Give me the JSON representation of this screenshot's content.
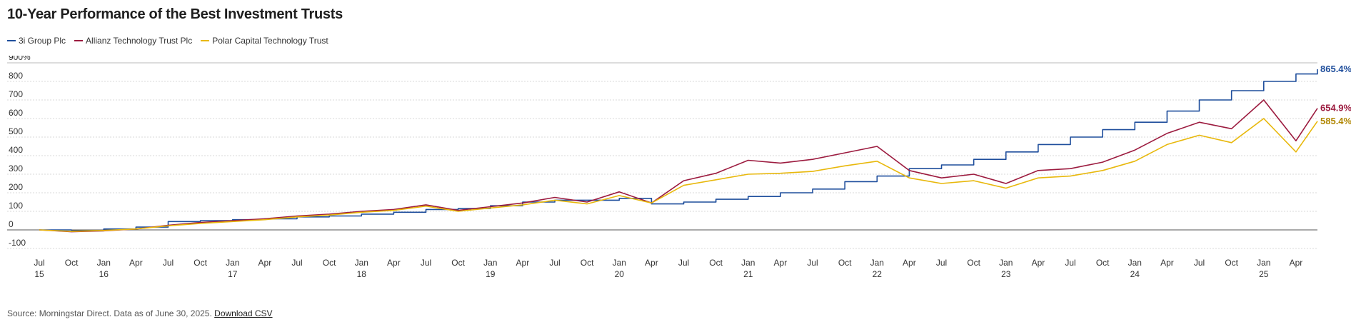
{
  "title": "10-Year Performance of the Best Investment Trusts",
  "footer": {
    "source_text": "Source: Morningstar Direct. Data as of June 30, 2025.",
    "download_label": "Download CSV"
  },
  "chart_data": {
    "type": "line",
    "title": "10-Year Performance of the Best Investment Trusts",
    "xlabel": "",
    "ylabel": "",
    "y_unit": "%",
    "ylim": [
      -100,
      900
    ],
    "y_ticks": [
      {
        "value": 900,
        "label": "900%"
      },
      {
        "value": 800,
        "label": "800"
      },
      {
        "value": 700,
        "label": "700"
      },
      {
        "value": 600,
        "label": "600"
      },
      {
        "value": 500,
        "label": "500"
      },
      {
        "value": 400,
        "label": "400"
      },
      {
        "value": 300,
        "label": "300"
      },
      {
        "value": 200,
        "label": "200"
      },
      {
        "value": 100,
        "label": "100"
      },
      {
        "value": 0,
        "label": "0"
      },
      {
        "value": -100,
        "label": "-100"
      }
    ],
    "xlim": [
      "2015-07",
      "2025-06"
    ],
    "x_ticks": [
      {
        "date": "2015-07",
        "label": "Jul",
        "year": "15"
      },
      {
        "date": "2015-10",
        "label": "Oct",
        "year": ""
      },
      {
        "date": "2016-01",
        "label": "Jan",
        "year": "16"
      },
      {
        "date": "2016-04",
        "label": "Apr",
        "year": ""
      },
      {
        "date": "2016-07",
        "label": "Jul",
        "year": ""
      },
      {
        "date": "2016-10",
        "label": "Oct",
        "year": ""
      },
      {
        "date": "2017-01",
        "label": "Jan",
        "year": "17"
      },
      {
        "date": "2017-04",
        "label": "Apr",
        "year": ""
      },
      {
        "date": "2017-07",
        "label": "Jul",
        "year": ""
      },
      {
        "date": "2017-10",
        "label": "Oct",
        "year": ""
      },
      {
        "date": "2018-01",
        "label": "Jan",
        "year": "18"
      },
      {
        "date": "2018-04",
        "label": "Apr",
        "year": ""
      },
      {
        "date": "2018-07",
        "label": "Jul",
        "year": ""
      },
      {
        "date": "2018-10",
        "label": "Oct",
        "year": ""
      },
      {
        "date": "2019-01",
        "label": "Jan",
        "year": "19"
      },
      {
        "date": "2019-04",
        "label": "Apr",
        "year": ""
      },
      {
        "date": "2019-07",
        "label": "Jul",
        "year": ""
      },
      {
        "date": "2019-10",
        "label": "Oct",
        "year": ""
      },
      {
        "date": "2020-01",
        "label": "Jan",
        "year": "20"
      },
      {
        "date": "2020-04",
        "label": "Apr",
        "year": ""
      },
      {
        "date": "2020-07",
        "label": "Jul",
        "year": ""
      },
      {
        "date": "2020-10",
        "label": "Oct",
        "year": ""
      },
      {
        "date": "2021-01",
        "label": "Jan",
        "year": "21"
      },
      {
        "date": "2021-04",
        "label": "Apr",
        "year": ""
      },
      {
        "date": "2021-07",
        "label": "Jul",
        "year": ""
      },
      {
        "date": "2021-10",
        "label": "Oct",
        "year": ""
      },
      {
        "date": "2022-01",
        "label": "Jan",
        "year": "22"
      },
      {
        "date": "2022-04",
        "label": "Apr",
        "year": ""
      },
      {
        "date": "2022-07",
        "label": "Jul",
        "year": ""
      },
      {
        "date": "2022-10",
        "label": "Oct",
        "year": ""
      },
      {
        "date": "2023-01",
        "label": "Jan",
        "year": "23"
      },
      {
        "date": "2023-04",
        "label": "Apr",
        "year": ""
      },
      {
        "date": "2023-07",
        "label": "Jul",
        "year": ""
      },
      {
        "date": "2023-10",
        "label": "Oct",
        "year": ""
      },
      {
        "date": "2024-01",
        "label": "Jan",
        "year": "24"
      },
      {
        "date": "2024-04",
        "label": "Apr",
        "year": ""
      },
      {
        "date": "2024-07",
        "label": "Jul",
        "year": ""
      },
      {
        "date": "2024-10",
        "label": "Oct",
        "year": ""
      },
      {
        "date": "2025-01",
        "label": "Jan",
        "year": "25"
      },
      {
        "date": "2025-04",
        "label": "Apr",
        "year": ""
      }
    ],
    "grid": true,
    "legend_position": "top-left",
    "series": [
      {
        "name": "3i Group Plc",
        "color": "#1f4e9c",
        "end_label": "865.4%",
        "x": [
          "2015-07",
          "2015-10",
          "2016-01",
          "2016-04",
          "2016-07",
          "2016-10",
          "2017-01",
          "2017-04",
          "2017-07",
          "2017-10",
          "2018-01",
          "2018-04",
          "2018-07",
          "2018-10",
          "2019-01",
          "2019-04",
          "2019-07",
          "2019-10",
          "2020-01",
          "2020-04",
          "2020-07",
          "2020-10",
          "2021-01",
          "2021-04",
          "2021-07",
          "2021-10",
          "2022-01",
          "2022-04",
          "2022-07",
          "2022-10",
          "2023-01",
          "2023-04",
          "2023-07",
          "2023-10",
          "2024-01",
          "2024-04",
          "2024-07",
          "2024-10",
          "2025-01",
          "2025-04",
          "2025-06"
        ],
        "y": [
          0,
          -5,
          5,
          15,
          45,
          50,
          55,
          60,
          70,
          75,
          85,
          95,
          110,
          115,
          130,
          150,
          160,
          160,
          170,
          140,
          150,
          165,
          180,
          200,
          220,
          260,
          290,
          330,
          350,
          380,
          420,
          460,
          500,
          540,
          580,
          640,
          700,
          750,
          800,
          840,
          865.4
        ]
      },
      {
        "name": "Allianz Technology Trust Plc",
        "color": "#9c1b3f",
        "end_label": "654.9%",
        "x": [
          "2015-07",
          "2015-10",
          "2016-01",
          "2016-04",
          "2016-07",
          "2016-10",
          "2017-01",
          "2017-04",
          "2017-07",
          "2017-10",
          "2018-01",
          "2018-04",
          "2018-07",
          "2018-10",
          "2019-01",
          "2019-04",
          "2019-07",
          "2019-10",
          "2020-01",
          "2020-04",
          "2020-07",
          "2020-10",
          "2021-01",
          "2021-04",
          "2021-07",
          "2021-10",
          "2022-01",
          "2022-04",
          "2022-07",
          "2022-10",
          "2023-01",
          "2023-04",
          "2023-07",
          "2023-10",
          "2024-01",
          "2024-04",
          "2024-07",
          "2024-10",
          "2025-01",
          "2025-04",
          "2025-06"
        ],
        "y": [
          0,
          -10,
          -5,
          5,
          25,
          40,
          50,
          60,
          75,
          85,
          100,
          110,
          135,
          105,
          125,
          145,
          175,
          150,
          205,
          145,
          265,
          305,
          375,
          360,
          380,
          415,
          450,
          320,
          280,
          300,
          250,
          320,
          330,
          365,
          430,
          520,
          580,
          545,
          700,
          480,
          654.9
        ]
      },
      {
        "name": "Polar Capital Technology Trust",
        "color": "#e8b80c",
        "end_label": "585.4%",
        "x": [
          "2015-07",
          "2015-10",
          "2016-01",
          "2016-04",
          "2016-07",
          "2016-10",
          "2017-01",
          "2017-04",
          "2017-07",
          "2017-10",
          "2018-01",
          "2018-04",
          "2018-07",
          "2018-10",
          "2019-01",
          "2019-04",
          "2019-07",
          "2019-10",
          "2020-01",
          "2020-04",
          "2020-07",
          "2020-10",
          "2021-01",
          "2021-04",
          "2021-07",
          "2021-10",
          "2022-01",
          "2022-04",
          "2022-07",
          "2022-10",
          "2023-01",
          "2023-04",
          "2023-07",
          "2023-10",
          "2024-01",
          "2024-04",
          "2024-07",
          "2024-10",
          "2025-01",
          "2025-04",
          "2025-06"
        ],
        "y": [
          0,
          -8,
          -3,
          5,
          22,
          35,
          45,
          55,
          70,
          80,
          95,
          105,
          128,
          100,
          118,
          135,
          160,
          140,
          185,
          145,
          240,
          270,
          300,
          305,
          315,
          345,
          370,
          280,
          250,
          265,
          225,
          280,
          290,
          320,
          370,
          460,
          510,
          470,
          600,
          420,
          585.4
        ]
      }
    ]
  }
}
